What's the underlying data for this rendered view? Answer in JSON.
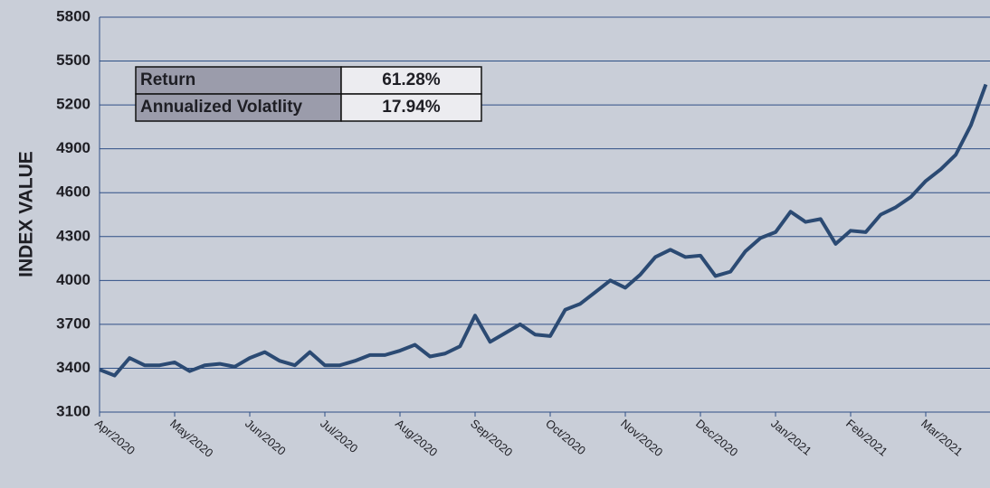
{
  "chart_data": {
    "type": "line",
    "y_label": "INDEX VALUE",
    "categories": [
      "Apr/2020",
      null,
      null,
      null,
      null,
      "May/2020",
      null,
      null,
      null,
      null,
      "Jun/2020",
      null,
      null,
      null,
      null,
      "Jul/2020",
      null,
      null,
      null,
      null,
      "Aug/2020",
      null,
      null,
      null,
      null,
      "Sep/2020",
      null,
      null,
      null,
      null,
      "Oct/2020",
      null,
      null,
      null,
      null,
      "Nov/2020",
      null,
      null,
      null,
      null,
      "Dec/2020",
      null,
      null,
      null,
      null,
      "Jan/2021",
      null,
      null,
      null,
      null,
      "Feb/2021",
      null,
      null,
      null,
      null,
      "Mar/2021",
      null,
      null,
      null,
      null
    ],
    "series": [
      {
        "name": "Index",
        "color": "#2b4a73",
        "values": [
          3390,
          3350,
          3470,
          3420,
          3420,
          3440,
          3380,
          3420,
          3430,
          3410,
          3470,
          3510,
          3450,
          3420,
          3510,
          3420,
          3420,
          3450,
          3490,
          3490,
          3520,
          3560,
          3480,
          3500,
          3550,
          3760,
          3580,
          3640,
          3700,
          3630,
          3620,
          3800,
          3840,
          3920,
          4000,
          3950,
          4040,
          4160,
          4210,
          4160,
          4170,
          4030,
          4060,
          4200,
          4290,
          4330,
          4470,
          4400,
          4420,
          4250,
          4340,
          4330,
          4450,
          4500,
          4570,
          4680,
          4760,
          4860,
          5060,
          5340
        ]
      }
    ],
    "ylim": [
      3100,
      5800
    ],
    "yticks": [
      3100,
      3400,
      3700,
      4000,
      4300,
      4600,
      4900,
      5200,
      5500,
      5800
    ],
    "grid": true,
    "table": {
      "rows": [
        [
          "Return",
          "61.28%"
        ],
        [
          "Annualized Volatlity",
          "17.94%"
        ]
      ]
    }
  }
}
